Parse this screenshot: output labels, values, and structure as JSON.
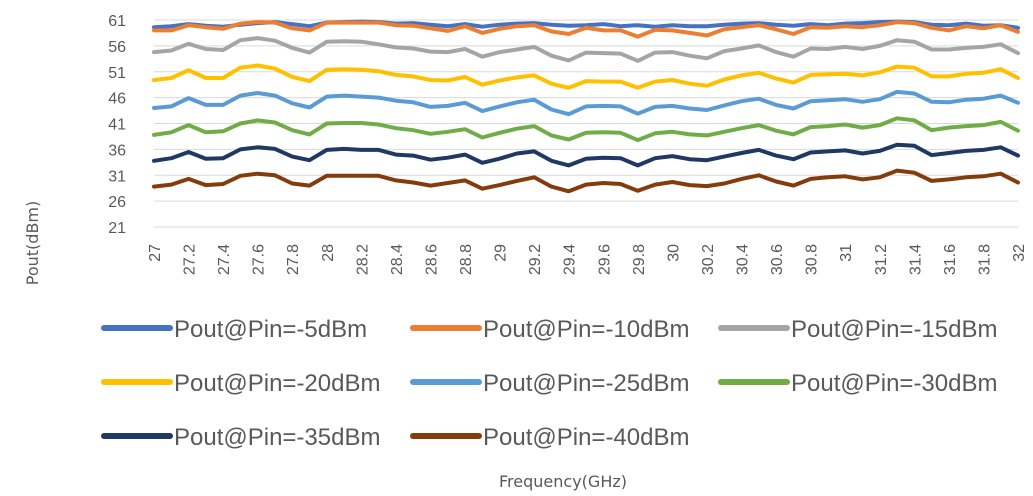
{
  "chart_data": {
    "type": "line",
    "xlabel": "Frequency(GHz)",
    "ylabel": "Pout(dBm)",
    "ylim": [
      21,
      61
    ],
    "yticks": [
      21,
      26,
      31,
      36,
      41,
      46,
      51,
      56,
      61
    ],
    "x": [
      27,
      27.1,
      27.2,
      27.3,
      27.4,
      27.5,
      27.6,
      27.7,
      27.8,
      27.9,
      28,
      28.1,
      28.2,
      28.3,
      28.4,
      28.5,
      28.6,
      28.7,
      28.8,
      28.9,
      29,
      29.1,
      29.2,
      29.3,
      29.4,
      29.5,
      29.6,
      29.7,
      29.8,
      29.9,
      30,
      30.1,
      30.2,
      30.3,
      30.4,
      30.5,
      30.6,
      30.7,
      30.8,
      30.9,
      31,
      31.1,
      31.2,
      31.3,
      31.4,
      31.5,
      31.6,
      31.7,
      31.8,
      31.9,
      32
    ],
    "x_tick_labels": [
      "27",
      "27.2",
      "27.4",
      "27.6",
      "27.8",
      "28",
      "28.2",
      "28.4",
      "28.6",
      "28.8",
      "29",
      "29.2",
      "29.4",
      "29.6",
      "29.8",
      "30",
      "30.2",
      "30.4",
      "30.6",
      "30.8",
      "31",
      "31.2",
      "31.4",
      "31.6",
      "31.8",
      "32"
    ],
    "grid": true,
    "legend_position": "bottom",
    "series": [
      {
        "name": "Pout@Pin=-5dBm",
        "color": "#4472c4",
        "values": [
          59.6,
          59.8,
          60.2,
          59.9,
          59.7,
          60.1,
          60.4,
          60.6,
          60.2,
          59.8,
          60.5,
          60.6,
          60.7,
          60.6,
          60.3,
          60.4,
          60.1,
          59.8,
          60.2,
          59.7,
          60.1,
          60.3,
          60.4,
          60.1,
          59.9,
          60.0,
          60.2,
          59.8,
          60.0,
          59.7,
          60.0,
          59.8,
          59.8,
          60.1,
          60.3,
          60.4,
          60.1,
          59.9,
          60.2,
          60.0,
          60.3,
          60.4,
          60.6,
          60.7,
          60.6,
          60.1,
          60.0,
          60.3,
          59.9,
          60.0,
          59.5
        ]
      },
      {
        "name": "Pout@Pin=-10dBm",
        "color": "#ed7d31",
        "values": [
          59.0,
          59.0,
          60.0,
          59.6,
          59.3,
          60.3,
          60.6,
          60.5,
          59.4,
          59.0,
          60.5,
          60.5,
          60.5,
          60.5,
          60.0,
          59.9,
          59.4,
          58.9,
          59.8,
          58.5,
          59.3,
          59.8,
          60.0,
          58.8,
          58.3,
          59.5,
          59.0,
          59.0,
          57.8,
          59.1,
          59.0,
          58.5,
          58.0,
          59.2,
          59.6,
          60.0,
          59.2,
          58.3,
          59.6,
          59.5,
          59.8,
          59.6,
          60.0,
          60.6,
          60.4,
          59.5,
          59.0,
          59.8,
          59.4,
          60.0,
          58.7
        ]
      },
      {
        "name": "Pout@Pin=-15dBm",
        "color": "#a5a5a5",
        "values": [
          54.8,
          55.1,
          56.4,
          55.4,
          55.2,
          57.1,
          57.5,
          57.0,
          55.6,
          54.7,
          56.8,
          56.9,
          56.8,
          56.3,
          55.7,
          55.5,
          54.9,
          54.8,
          55.4,
          53.9,
          54.8,
          55.3,
          55.8,
          54.1,
          53.2,
          54.7,
          54.6,
          54.5,
          53.1,
          54.7,
          54.8,
          54.1,
          53.6,
          55.0,
          55.5,
          56.1,
          54.8,
          53.9,
          55.5,
          55.4,
          55.8,
          55.4,
          56.0,
          57.1,
          56.8,
          55.3,
          55.3,
          55.6,
          55.8,
          56.3,
          54.6
        ]
      },
      {
        "name": "Pout@Pin=-20dBm",
        "color": "#ffc000",
        "values": [
          49.4,
          49.8,
          51.3,
          49.8,
          49.8,
          51.8,
          52.2,
          51.6,
          50.0,
          49.2,
          51.4,
          51.5,
          51.4,
          51.1,
          50.4,
          50.1,
          49.4,
          49.3,
          50.0,
          48.5,
          49.3,
          49.9,
          50.3,
          48.7,
          47.9,
          49.2,
          49.1,
          49.1,
          47.9,
          49.1,
          49.4,
          48.7,
          48.3,
          49.5,
          50.3,
          50.8,
          49.7,
          48.9,
          50.4,
          50.5,
          50.6,
          50.3,
          50.9,
          52.0,
          51.8,
          50.1,
          50.1,
          50.6,
          50.8,
          51.5,
          49.8
        ]
      },
      {
        "name": "Pout@Pin=-25dBm",
        "color": "#5b9bd5",
        "values": [
          44.0,
          44.3,
          45.9,
          44.6,
          44.6,
          46.4,
          46.9,
          46.4,
          44.9,
          44.1,
          46.2,
          46.4,
          46.2,
          46.0,
          45.4,
          45.1,
          44.2,
          44.4,
          45.0,
          43.4,
          44.3,
          45.1,
          45.6,
          43.7,
          42.8,
          44.3,
          44.4,
          44.3,
          42.9,
          44.2,
          44.4,
          43.9,
          43.6,
          44.5,
          45.3,
          45.8,
          44.6,
          43.9,
          45.3,
          45.5,
          45.7,
          45.2,
          45.7,
          47.1,
          46.8,
          45.2,
          45.1,
          45.6,
          45.8,
          46.4,
          45.0
        ]
      },
      {
        "name": "Pout@Pin=-30dBm",
        "color": "#70ad47",
        "values": [
          38.8,
          39.3,
          40.7,
          39.3,
          39.5,
          41.0,
          41.6,
          41.2,
          39.7,
          38.9,
          41.0,
          41.1,
          41.1,
          40.8,
          40.1,
          39.7,
          39.0,
          39.4,
          39.9,
          38.3,
          39.2,
          40.0,
          40.5,
          38.7,
          37.9,
          39.2,
          39.3,
          39.2,
          37.8,
          39.1,
          39.4,
          38.9,
          38.7,
          39.4,
          40.1,
          40.7,
          39.6,
          38.9,
          40.3,
          40.5,
          40.8,
          40.2,
          40.7,
          42.0,
          41.6,
          39.7,
          40.2,
          40.5,
          40.7,
          41.3,
          39.6
        ]
      },
      {
        "name": "Pout@Pin=-35dBm",
        "color": "#1f3864",
        "values": [
          33.8,
          34.3,
          35.5,
          34.2,
          34.3,
          36.0,
          36.4,
          36.1,
          34.6,
          33.9,
          35.9,
          36.1,
          35.9,
          35.9,
          35.0,
          34.8,
          34.0,
          34.4,
          35.0,
          33.4,
          34.2,
          35.2,
          35.6,
          33.8,
          32.9,
          34.2,
          34.4,
          34.3,
          32.9,
          34.3,
          34.7,
          34.1,
          33.9,
          34.6,
          35.3,
          35.9,
          34.8,
          34.1,
          35.4,
          35.6,
          35.8,
          35.2,
          35.7,
          36.9,
          36.7,
          34.9,
          35.3,
          35.7,
          35.9,
          36.4,
          34.8
        ]
      },
      {
        "name": "Pout@Pin=-40dBm",
        "color": "#843c0c",
        "values": [
          28.8,
          29.2,
          30.3,
          29.1,
          29.3,
          30.9,
          31.3,
          31.0,
          29.4,
          29.0,
          30.9,
          30.9,
          30.9,
          30.9,
          30.0,
          29.6,
          29.0,
          29.5,
          30.0,
          28.4,
          29.1,
          29.9,
          30.6,
          28.8,
          27.9,
          29.2,
          29.5,
          29.3,
          28.0,
          29.2,
          29.7,
          29.1,
          28.9,
          29.4,
          30.3,
          31.0,
          29.8,
          29.0,
          30.3,
          30.6,
          30.8,
          30.2,
          30.6,
          31.9,
          31.5,
          29.9,
          30.2,
          30.6,
          30.8,
          31.3,
          29.6
        ]
      }
    ]
  }
}
